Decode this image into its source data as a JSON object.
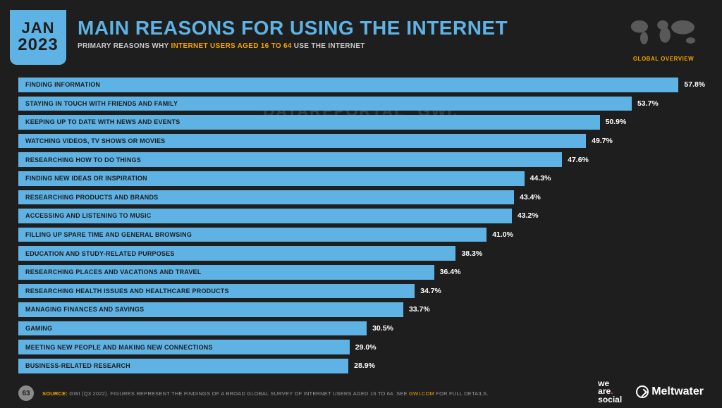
{
  "date_badge": {
    "month": "JAN",
    "year": "2023"
  },
  "header": {
    "title": "MAIN REASONS FOR USING THE INTERNET",
    "subtitle_pre": "PRIMARY REASONS WHY ",
    "subtitle_hl": "INTERNET USERS AGED 16 TO 64",
    "subtitle_post": " USE THE INTERNET"
  },
  "overview_label": "GLOBAL OVERVIEW",
  "chart": {
    "type": "horizontal-bar",
    "bar_color": "#5eb3e4",
    "background_color": "#1e1e1e",
    "label_color": "#1e1e1e",
    "value_color": "#ffffff",
    "label_fontsize": 9,
    "value_fontsize": 10.5,
    "xmax": 60,
    "bars": [
      {
        "label": "FINDING INFORMATION",
        "value": 57.8,
        "display": "57.8%"
      },
      {
        "label": "STAYING IN TOUCH WITH FRIENDS AND FAMILY",
        "value": 53.7,
        "display": "53.7%"
      },
      {
        "label": "KEEPING UP TO DATE WITH NEWS AND EVENTS",
        "value": 50.9,
        "display": "50.9%"
      },
      {
        "label": "WATCHING VIDEOS, TV SHOWS OR MOVIES",
        "value": 49.7,
        "display": "49.7%"
      },
      {
        "label": "RESEARCHING HOW TO DO THINGS",
        "value": 47.6,
        "display": "47.6%"
      },
      {
        "label": "FINDING NEW IDEAS OR INSPIRATION",
        "value": 44.3,
        "display": "44.3%"
      },
      {
        "label": "RESEARCHING PRODUCTS AND BRANDS",
        "value": 43.4,
        "display": "43.4%"
      },
      {
        "label": "ACCESSING AND LISTENING TO MUSIC",
        "value": 43.2,
        "display": "43.2%"
      },
      {
        "label": "FILLING UP SPARE TIME AND GENERAL BROWSING",
        "value": 41.0,
        "display": "41.0%"
      },
      {
        "label": "EDUCATION AND STUDY-RELATED PURPOSES",
        "value": 38.3,
        "display": "38.3%"
      },
      {
        "label": "RESEARCHING PLACES AND VACATIONS AND TRAVEL",
        "value": 36.4,
        "display": "36.4%"
      },
      {
        "label": "RESEARCHING HEALTH ISSUES AND HEALTHCARE PRODUCTS",
        "value": 34.7,
        "display": "34.7%"
      },
      {
        "label": "MANAGING FINANCES AND SAVINGS",
        "value": 33.7,
        "display": "33.7%"
      },
      {
        "label": "GAMING",
        "value": 30.5,
        "display": "30.5%"
      },
      {
        "label": "MEETING NEW PEOPLE AND MAKING NEW CONNECTIONS",
        "value": 29.0,
        "display": "29.0%"
      },
      {
        "label": "BUSINESS-RELATED RESEARCH",
        "value": 28.9,
        "display": "28.9%"
      }
    ]
  },
  "watermark": {
    "left": "DATAREPORTAL",
    "right": "GWI."
  },
  "footer": {
    "page": "63",
    "source_label": "SOURCE:",
    "source_text_pre": " GWI (Q3 2022). FIGURES REPRESENT THE FINDINGS OF A BROAD GLOBAL SURVEY OF INTERNET USERS AGED 16 TO 64. SEE ",
    "source_link": "GWI.COM",
    "source_text_post": " FOR FULL DETAILS."
  },
  "logos": {
    "wearesocial_l1": "we",
    "wearesocial_l2": "are",
    "wearesocial_l3": "social",
    "meltwater": "Meltwater"
  }
}
